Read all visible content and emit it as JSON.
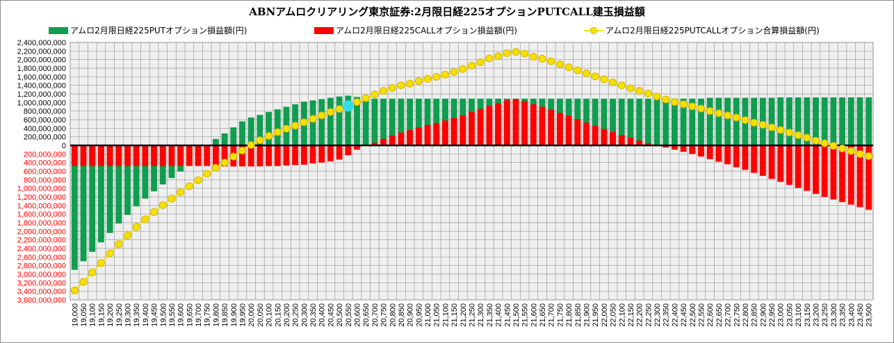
{
  "chart_data": {
    "type": "bar+line",
    "title": "ABNアムロクリアリング東京証券:2月限日経225オプションPUTCALL建玉損益額",
    "legend_position": "top",
    "grid": true,
    "ylim": [
      -3600000000,
      2400000000
    ],
    "y_ticks": [
      2400000000,
      2200000000,
      2000000000,
      1800000000,
      1600000000,
      1400000000,
      1200000000,
      1000000000,
      800000000,
      600000000,
      400000000,
      200000000,
      0,
      -200000000,
      -400000000,
      -600000000,
      -800000000,
      -1000000000,
      -1200000000,
      -1400000000,
      -1600000000,
      -1800000000,
      -2000000000,
      -2200000000,
      -2400000000,
      -2600000000,
      -2800000000,
      -3000000000,
      -3200000000,
      -3400000000,
      -3600000000
    ],
    "y_tick_labels": [
      "2,400,000,000",
      "2,200,000,000",
      "2,000,000,000",
      "1,800,000,000",
      "1,600,000,000",
      "1,400,000,000",
      "1,200,000,000",
      "1,000,000,000",
      "800,000,000",
      "600,000,000",
      "400,000,000",
      "200,000,000",
      "0",
      "200,000,000",
      "400,000,000",
      "600,000,000",
      "800,000,000",
      "1,000,000,000",
      "1,200,000,000",
      "1,400,000,000",
      "1,600,000,000",
      "1,800,000,000",
      "2,000,000,000",
      "2,200,000,000",
      "2,400,000,000",
      "2,600,000,000",
      "2,800,000,000",
      "3,000,000,000",
      "3,200,000,000",
      "3,400,000,000",
      "3,600,000,000"
    ],
    "categories": [
      "19,000",
      "19,050",
      "19,100",
      "19,150",
      "19,200",
      "19,250",
      "19,300",
      "19,350",
      "19,400",
      "19,450",
      "19,500",
      "19,550",
      "19,600",
      "19,650",
      "19,700",
      "19,750",
      "19,800",
      "19,850",
      "19,900",
      "19,950",
      "20,000",
      "20,050",
      "20,100",
      "20,150",
      "20,200",
      "20,250",
      "20,300",
      "20,350",
      "20,400",
      "20,450",
      "20,500",
      "20,550",
      "20,600",
      "20,650",
      "20,700",
      "20,750",
      "20,800",
      "20,850",
      "20,900",
      "20,950",
      "21,000",
      "21,050",
      "21,100",
      "21,150",
      "21,200",
      "21,250",
      "21,300",
      "21,350",
      "21,400",
      "21,450",
      "21,500",
      "21,550",
      "21,600",
      "21,650",
      "21,700",
      "21,750",
      "21,800",
      "21,850",
      "21,900",
      "21,950",
      "22,000",
      "22,050",
      "22,100",
      "22,150",
      "22,200",
      "22,250",
      "22,300",
      "22,350",
      "22,400",
      "22,450",
      "22,500",
      "22,550",
      "22,600",
      "22,650",
      "22,700",
      "22,750",
      "22,800",
      "22,850",
      "22,900",
      "22,950",
      "23,000",
      "23,050",
      "23,100",
      "23,150",
      "23,200",
      "23,250",
      "23,300",
      "23,350",
      "23,400",
      "23,450",
      "23,500"
    ],
    "series": [
      {
        "name": "アムロ2月限日経225PUTオプション損益額(円)",
        "type": "bar",
        "color": "#0f9d50",
        "values": [
          -2900000000,
          -2700000000,
          -2480000000,
          -2260000000,
          -2040000000,
          -1820000000,
          -1620000000,
          -1420000000,
          -1240000000,
          -1070000000,
          -910000000,
          -760000000,
          -610000000,
          -470000000,
          -330000000,
          0,
          150000000,
          280000000,
          420000000,
          560000000,
          650000000,
          710000000,
          780000000,
          840000000,
          900000000,
          960000000,
          1020000000,
          1050000000,
          1080000000,
          1110000000,
          1140000000,
          1160000000,
          1130000000,
          1090000000,
          1090000000,
          1090000000,
          1090000000,
          1090000000,
          1090000000,
          1090000000,
          1090000000,
          1090000000,
          1090000000,
          1090000000,
          1090000000,
          1090000000,
          1090000000,
          1090000000,
          1090000000,
          1090000000,
          1090000000,
          1090000000,
          1090000000,
          1090000000,
          1090000000,
          1090000000,
          1090000000,
          1090000000,
          1090000000,
          1090000000,
          1090000000,
          1090000000,
          1090000000,
          1090000000,
          1090000000,
          1090000000,
          1090000000,
          1090000000,
          1090000000,
          1090000000,
          1090000000,
          1090000000,
          1110000000,
          1110000000,
          1110000000,
          1110000000,
          1110000000,
          1110000000,
          1110000000,
          1110000000,
          1120000000,
          1120000000,
          1120000000,
          1120000000,
          1120000000,
          1120000000,
          1120000000,
          1120000000,
          1120000000,
          1120000000,
          1120000000
        ]
      },
      {
        "name": "アムロ2月限日経225CALLオプション損益額(円)",
        "type": "bar",
        "color": "#ff0000",
        "values": [
          -480000000,
          -480000000,
          -480000000,
          -480000000,
          -480000000,
          -480000000,
          -480000000,
          -480000000,
          -480000000,
          -480000000,
          -480000000,
          -480000000,
          -480000000,
          -480000000,
          -480000000,
          -480000000,
          -490000000,
          -490000000,
          -490000000,
          -490000000,
          -490000000,
          -490000000,
          -480000000,
          -480000000,
          -470000000,
          -460000000,
          -450000000,
          -420000000,
          -400000000,
          -370000000,
          -330000000,
          -230000000,
          -100000000,
          0,
          60000000,
          150000000,
          230000000,
          300000000,
          360000000,
          420000000,
          480000000,
          520000000,
          580000000,
          640000000,
          700000000,
          780000000,
          850000000,
          920000000,
          980000000,
          1050000000,
          1080000000,
          1030000000,
          960000000,
          900000000,
          830000000,
          760000000,
          690000000,
          610000000,
          530000000,
          450000000,
          380000000,
          310000000,
          240000000,
          180000000,
          110000000,
          50000000,
          -10000000,
          -50000000,
          -100000000,
          -150000000,
          -200000000,
          -260000000,
          -320000000,
          -380000000,
          -440000000,
          -510000000,
          -570000000,
          -640000000,
          -710000000,
          -780000000,
          -850000000,
          -920000000,
          -990000000,
          -1060000000,
          -1130000000,
          -1200000000,
          -1260000000,
          -1320000000,
          -1380000000,
          -1440000000,
          -1500000000
        ]
      },
      {
        "name": "アムロ2月限日経225PUTCALLオプション合算損益額(円)",
        "type": "line",
        "color": "#f5e100",
        "values": [
          -3380000000,
          -3180000000,
          -2960000000,
          -2740000000,
          -2520000000,
          -2300000000,
          -2100000000,
          -1900000000,
          -1720000000,
          -1550000000,
          -1390000000,
          -1240000000,
          -1090000000,
          -950000000,
          -810000000,
          -660000000,
          -520000000,
          -400000000,
          -260000000,
          -120000000,
          10000000,
          120000000,
          220000000,
          310000000,
          390000000,
          460000000,
          540000000,
          620000000,
          700000000,
          780000000,
          850000000,
          920000000,
          1010000000,
          1100000000,
          1190000000,
          1270000000,
          1340000000,
          1400000000,
          1440000000,
          1500000000,
          1550000000,
          1600000000,
          1650000000,
          1710000000,
          1780000000,
          1860000000,
          1940000000,
          2030000000,
          2080000000,
          2150000000,
          2180000000,
          2140000000,
          2070000000,
          2020000000,
          1960000000,
          1890000000,
          1820000000,
          1750000000,
          1680000000,
          1610000000,
          1540000000,
          1470000000,
          1400000000,
          1330000000,
          1270000000,
          1210000000,
          1140000000,
          1070000000,
          1010000000,
          960000000,
          910000000,
          860000000,
          800000000,
          750000000,
          700000000,
          650000000,
          590000000,
          530000000,
          480000000,
          420000000,
          360000000,
          300000000,
          240000000,
          180000000,
          110000000,
          50000000,
          -10000000,
          -70000000,
          -130000000,
          -200000000,
          -250000000
        ]
      }
    ],
    "highlight_marker": {
      "category": "20,550",
      "value": 920000000,
      "color": "#33dde8"
    }
  }
}
